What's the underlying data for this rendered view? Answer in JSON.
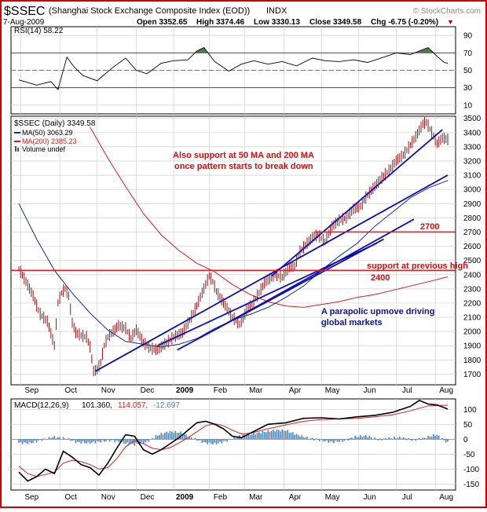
{
  "header": {
    "symbol": "$SSEC",
    "name": "(Shanghai Stock Exchange Composite Index (EOD))",
    "exchange": "INDX",
    "watermark": "© StockCharts.com",
    "date": "7-Aug-2009",
    "open": "Open 3352.65",
    "high": "High 3374.46",
    "low": "Low 3330.13",
    "close": "Close 3349.58",
    "chg": "Chg -6.75 (-0.20%)",
    "chg_arrow": "▼"
  },
  "rsi": {
    "legend": "RSI(14) 58.22",
    "ticks": [
      "90",
      "70",
      "50",
      "30",
      "10"
    ],
    "tick_values": [
      90,
      70,
      50,
      30,
      10
    ],
    "ylim": [
      0,
      100
    ]
  },
  "price": {
    "legend": [
      "$SSEC (Daily) 3349.58",
      "MA(50) 3063.29",
      "MA(200) 2385.23",
      "Volume undef"
    ],
    "ticks": [
      "3500",
      "3400",
      "3300",
      "3200",
      "3100",
      "3000",
      "2900",
      "2800",
      "2700",
      "2600",
      "2500",
      "2400",
      "2300",
      "2200",
      "2100",
      "2000",
      "1900",
      "1800",
      "1700"
    ],
    "tick_values": [
      3500,
      3400,
      3300,
      3200,
      3100,
      3000,
      2900,
      2800,
      2700,
      2600,
      2500,
      2400,
      2300,
      2200,
      2100,
      2000,
      1900,
      1800,
      1700
    ],
    "ylim": [
      1625,
      3515
    ]
  },
  "macd": {
    "legend_name": "MACD(12,26,9)",
    "legend_macd": "101.360,",
    "legend_signal": "114.057,",
    "legend_hist": "-12.697",
    "ticks": [
      "100",
      "50",
      "0",
      "-50",
      "-100",
      "-150"
    ],
    "tick_values": [
      100,
      50,
      0,
      -50,
      -100,
      -150
    ],
    "ylim": [
      -170,
      135
    ]
  },
  "xaxis": {
    "labels": [
      "Sep",
      "Oct",
      "Nov",
      "Dec",
      "2009",
      "Feb",
      "Mar",
      "Apr",
      "May",
      "Jun",
      "Jul",
      "Aug"
    ],
    "positions": [
      1,
      23,
      44,
      66,
      87,
      107,
      127,
      149,
      170,
      191,
      212,
      234
    ],
    "bold": [
      "2009"
    ]
  },
  "annotations": {
    "ma_note_1": "Also support at 50 MA and 200 MA",
    "ma_note_2": "once pattern starts to break down",
    "level_2700": "2700",
    "support_1": "support at previous high",
    "level_2400": "2400",
    "parabolic_1": "A parapolic upmove driving",
    "parabolic_2": "global markets"
  },
  "colors": {
    "price": "#8b1a1a",
    "ma50": "#1c2a8a",
    "ma200": "#cc2020",
    "trendline": "#1010b0",
    "hline": "#e02020",
    "annotation_red": "#cc1111",
    "annotation_blue": "#101090",
    "rsi_hi": "#4d7a4d",
    "rsi_lo": "#8a5a5a",
    "hist": "#4f86b8"
  },
  "chart_data": [
    {
      "type": "line",
      "title": "RSI(14) 58.22",
      "x_unit": "trading-day index from late Aug 2008 to 7-Aug-2009",
      "ylim": [
        0,
        100
      ],
      "series": [
        {
          "name": "RSI(14)",
          "x": [
            0,
            10,
            18,
            22,
            27,
            31,
            36,
            44,
            52,
            60,
            66,
            72,
            80,
            87,
            95,
            100,
            104,
            110,
            118,
            125,
            132,
            140,
            148,
            156,
            165,
            172,
            180,
            188,
            196,
            205,
            212,
            220,
            226,
            230,
            235,
            239,
            241
          ],
          "values": [
            39,
            33,
            37,
            28,
            65,
            54,
            44,
            38,
            52,
            64,
            50,
            46,
            58,
            61,
            62,
            72,
            76,
            60,
            49,
            57,
            61,
            57,
            60,
            55,
            64,
            61,
            60,
            62,
            59,
            65,
            70,
            68,
            73,
            76,
            66,
            59,
            58
          ]
        }
      ]
    },
    {
      "type": "line",
      "title": "$SSEC (Daily) 3349.58",
      "ylim": [
        1625,
        3515
      ],
      "series": [
        {
          "name": "$SSEC",
          "x": [
            0,
            4,
            8,
            10,
            12,
            16,
            18,
            20,
            22,
            24,
            26,
            28,
            30,
            32,
            35,
            38,
            40,
            42,
            44,
            46,
            48,
            50,
            53,
            56,
            60,
            63,
            66,
            70,
            74,
            78,
            82,
            87,
            92,
            96,
            100,
            104,
            107,
            109,
            111,
            113,
            116,
            120,
            124,
            126,
            128,
            131,
            135,
            138,
            140,
            144,
            148,
            152,
            155,
            158,
            162,
            165,
            168,
            172,
            176,
            180,
            184,
            188,
            192,
            196,
            200,
            204,
            208,
            212,
            216,
            220,
            224,
            227,
            229,
            232,
            235,
            238,
            241
          ],
          "values": [
            2440,
            2350,
            2250,
            2180,
            2120,
            2070,
            1985,
            1900,
            2200,
            2270,
            2300,
            2250,
            2060,
            1990,
            1970,
            1960,
            1890,
            1720,
            1730,
            1780,
            1900,
            1960,
            2000,
            2040,
            2020,
            1950,
            2010,
            1920,
            1880,
            1870,
            1910,
            1960,
            1990,
            2080,
            2180,
            2300,
            2390,
            2350,
            2280,
            2240,
            2180,
            2100,
            2050,
            2090,
            2150,
            2190,
            2270,
            2340,
            2360,
            2400,
            2380,
            2450,
            2460,
            2560,
            2620,
            2660,
            2680,
            2630,
            2740,
            2780,
            2800,
            2860,
            2880,
            2960,
            3020,
            3080,
            3130,
            3200,
            3240,
            3310,
            3390,
            3460,
            3470,
            3400,
            3320,
            3360,
            3350
          ]
        },
        {
          "name": "MA(50)",
          "x": [
            0,
            10,
            20,
            30,
            40,
            50,
            60,
            70,
            80,
            90,
            100,
            110,
            120,
            130,
            140,
            150,
            160,
            170,
            180,
            190,
            200,
            210,
            220,
            230,
            241
          ],
          "values": [
            2900,
            2650,
            2430,
            2270,
            2130,
            2010,
            1930,
            1910,
            1890,
            1910,
            1950,
            2020,
            2080,
            2120,
            2170,
            2240,
            2320,
            2430,
            2530,
            2620,
            2740,
            2840,
            2940,
            3010,
            3063
          ]
        },
        {
          "name": "MA(200)",
          "x": [
            40,
            50,
            60,
            70,
            80,
            90,
            100,
            110,
            120,
            130,
            140,
            150,
            160,
            170,
            180,
            190,
            200,
            210,
            220,
            230,
            241
          ],
          "values": [
            3440,
            3220,
            3020,
            2830,
            2680,
            2570,
            2480,
            2420,
            2330,
            2260,
            2210,
            2180,
            2170,
            2190,
            2210,
            2240,
            2260,
            2290,
            2320,
            2350,
            2385
          ]
        }
      ]
    },
    {
      "type": "line",
      "title": "MACD(12,26,9)",
      "ylim": [
        -170,
        135
      ],
      "series": [
        {
          "name": "MACD",
          "x": [
            0,
            5,
            10,
            15,
            20,
            25,
            30,
            35,
            40,
            45,
            50,
            55,
            60,
            65,
            70,
            75,
            80,
            85,
            90,
            95,
            100,
            105,
            110,
            115,
            120,
            125,
            130,
            135,
            140,
            150,
            160,
            170,
            180,
            190,
            200,
            210,
            220,
            225,
            230,
            235,
            241
          ],
          "values": [
            -110,
            -140,
            -125,
            -100,
            -115,
            -40,
            -60,
            -85,
            -95,
            -120,
            -80,
            -30,
            15,
            10,
            -35,
            -50,
            -35,
            -15,
            5,
            30,
            55,
            60,
            50,
            35,
            10,
            5,
            20,
            35,
            50,
            55,
            70,
            72,
            68,
            75,
            80,
            90,
            110,
            130,
            118,
            115,
            101
          ]
        },
        {
          "name": "Signal",
          "x": [
            0,
            5,
            10,
            15,
            20,
            25,
            30,
            35,
            40,
            45,
            50,
            55,
            60,
            65,
            70,
            75,
            80,
            85,
            90,
            95,
            100,
            105,
            110,
            115,
            120,
            125,
            130,
            140,
            150,
            160,
            170,
            180,
            190,
            200,
            210,
            220,
            230,
            241
          ],
          "values": [
            -90,
            -115,
            -125,
            -118,
            -110,
            -80,
            -70,
            -75,
            -85,
            -100,
            -95,
            -65,
            -25,
            -5,
            -15,
            -30,
            -35,
            -28,
            -12,
            5,
            25,
            45,
            52,
            45,
            30,
            18,
            20,
            35,
            48,
            60,
            66,
            68,
            70,
            75,
            82,
            95,
            112,
            114
          ]
        }
      ],
      "histogram_values": [
        -12,
        -13,
        -2,
        8,
        3,
        -10,
        -13,
        -8,
        -4,
        -12,
        -18,
        -10,
        14,
        26,
        22,
        4,
        -12,
        -16,
        -4,
        12,
        17,
        24,
        30,
        30,
        15,
        4,
        -4,
        -10,
        -6,
        8,
        12,
        -2,
        4,
        6,
        -4,
        4,
        16,
        -12
      ]
    }
  ]
}
